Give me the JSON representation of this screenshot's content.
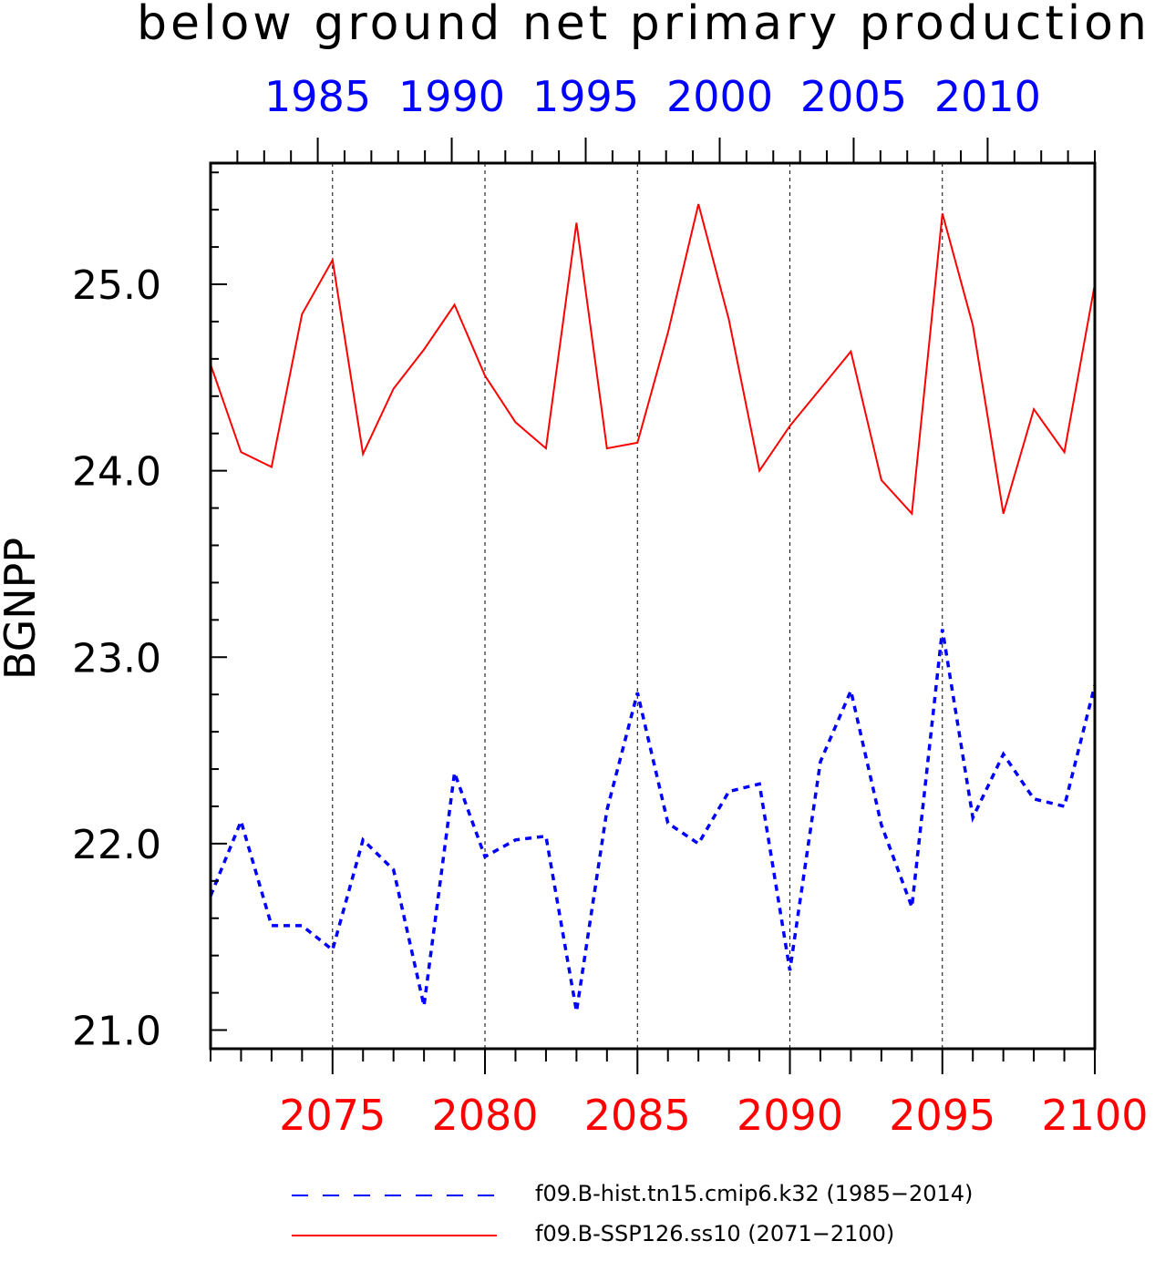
{
  "chart_data": {
    "type": "line",
    "title": "below ground net primary production",
    "ylabel": "BGNPP",
    "ylim": [
      20.9,
      25.65
    ],
    "yticks": [
      21.0,
      22.0,
      23.0,
      24.0,
      25.0
    ],
    "ytick_labels": [
      "21.0",
      "22.0",
      "23.0",
      "24.0",
      "25.0"
    ],
    "x_bottom": {
      "range": [
        2071,
        2100
      ],
      "ticks": [
        2075,
        2080,
        2085,
        2090,
        2095,
        2100
      ],
      "tick_labels": [
        "2075",
        "2080",
        "2085",
        "2090",
        "2095",
        "2100"
      ],
      "color": "#ff0000"
    },
    "x_top": {
      "range": [
        1981,
        2014
      ],
      "ticks": [
        1985,
        1990,
        1995,
        2000,
        2005,
        2010
      ],
      "tick_labels": [
        "1985",
        "1990",
        "1995",
        "2000",
        "2005",
        "2010"
      ],
      "color": "#0000ff"
    },
    "grid": "vertical dashed at bottom major ticks",
    "legend_position": "bottom",
    "series": [
      {
        "name": "f09.B-hist.tn15.cmip6.k32 (1985−2014)",
        "color": "#0000ff",
        "style": "dashed",
        "x": [
          1985,
          1986,
          1987,
          1988,
          1989,
          1990,
          1991,
          1992,
          1993,
          1994,
          1995,
          1996,
          1997,
          1998,
          1999,
          2000,
          2001,
          2002,
          2003,
          2004,
          2005,
          2006,
          2007,
          2008,
          2009,
          2010,
          2011,
          2012,
          2013,
          2014
        ],
        "values": [
          21.72,
          22.12,
          21.56,
          21.56,
          21.43,
          22.02,
          21.86,
          21.13,
          22.38,
          21.93,
          22.02,
          22.04,
          21.1,
          22.18,
          22.81,
          22.11,
          22.0,
          22.28,
          22.32,
          21.32,
          22.44,
          22.82,
          22.1,
          21.66,
          23.15,
          22.14,
          22.48,
          22.24,
          22.2,
          22.85
        ]
      },
      {
        "name": "f09.B-SSP126.ss10 (2071−2100)",
        "color": "#ff0000",
        "style": "solid",
        "x": [
          2071,
          2072,
          2073,
          2074,
          2075,
          2076,
          2077,
          2078,
          2079,
          2080,
          2081,
          2082,
          2083,
          2084,
          2085,
          2086,
          2087,
          2088,
          2089,
          2090,
          2091,
          2092,
          2093,
          2094,
          2095,
          2096,
          2097,
          2098,
          2099,
          2100
        ],
        "values": [
          24.57,
          24.1,
          24.02,
          24.84,
          25.13,
          24.09,
          24.44,
          24.65,
          24.89,
          24.51,
          24.26,
          24.12,
          25.33,
          24.12,
          24.15,
          24.74,
          25.43,
          24.81,
          24.0,
          24.24,
          24.44,
          24.64,
          23.95,
          23.77,
          25.38,
          24.78,
          23.77,
          24.33,
          24.1,
          25.0
        ]
      }
    ]
  }
}
